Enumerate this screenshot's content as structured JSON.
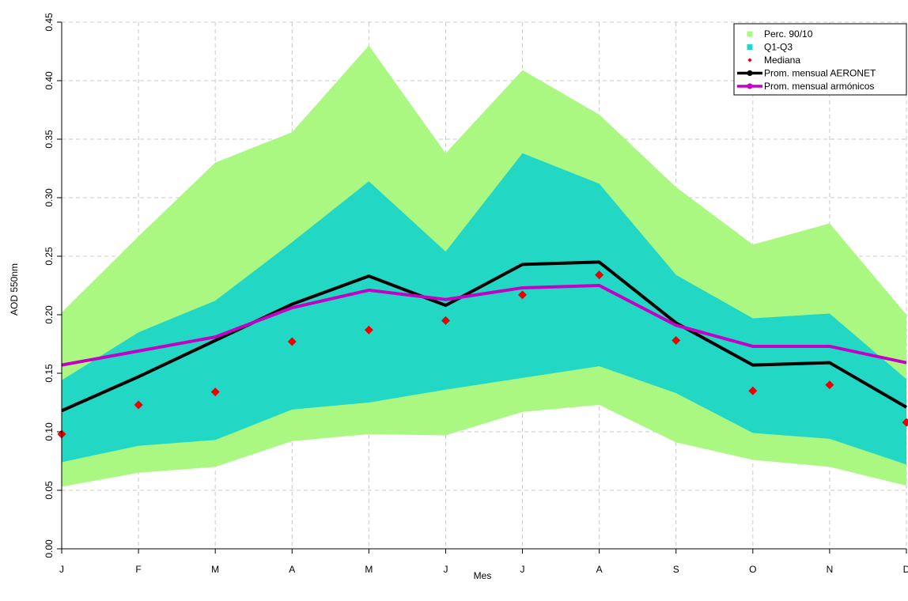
{
  "chart_data": {
    "type": "area",
    "title": "",
    "xlabel": "Mes",
    "ylabel": "AOD 550nm",
    "categories": [
      "J",
      "F",
      "M",
      "A",
      "M",
      "J",
      "J",
      "A",
      "S",
      "O",
      "N",
      "D"
    ],
    "ylim": [
      0,
      0.45
    ],
    "yticks": [
      "0.00",
      "0.05",
      "0.10",
      "0.15",
      "0.20",
      "0.25",
      "0.30",
      "0.35",
      "0.40",
      "0.45"
    ],
    "grid": true,
    "legend_position": "top-right",
    "bands": [
      {
        "name": "Perc. 90/10",
        "color": "#aaf882",
        "upper": [
          0.202,
          0.267,
          0.33,
          0.356,
          0.43,
          0.338,
          0.409,
          0.371,
          0.309,
          0.26,
          0.278,
          0.2
        ],
        "lower": [
          0.053,
          0.065,
          0.07,
          0.092,
          0.098,
          0.097,
          0.117,
          0.123,
          0.091,
          0.076,
          0.07,
          0.054
        ]
      },
      {
        "name": "Q1-Q3",
        "color": "#22d8c4",
        "upper": [
          0.144,
          0.185,
          0.212,
          0.262,
          0.314,
          0.254,
          0.338,
          0.312,
          0.234,
          0.197,
          0.201,
          0.145
        ],
        "lower": [
          0.074,
          0.088,
          0.093,
          0.119,
          0.125,
          0.136,
          0.146,
          0.156,
          0.133,
          0.099,
          0.094,
          0.072
        ]
      }
    ],
    "series": [
      {
        "name": "Mediana",
        "kind": "points",
        "color": "#ee0000",
        "values": [
          0.098,
          0.123,
          0.134,
          0.177,
          0.187,
          0.195,
          0.217,
          0.234,
          0.178,
          0.135,
          0.14,
          0.108
        ]
      },
      {
        "name": "Prom. mensual AERONET",
        "kind": "line",
        "color": "#000000",
        "values": [
          0.118,
          0.147,
          0.178,
          0.209,
          0.233,
          0.208,
          0.243,
          0.245,
          0.193,
          0.157,
          0.159,
          0.121
        ]
      },
      {
        "name": "Prom. mensual armónicos",
        "kind": "line",
        "color": "#c400c4",
        "values": [
          0.157,
          0.169,
          0.181,
          0.206,
          0.221,
          0.213,
          0.223,
          0.225,
          0.191,
          0.173,
          0.173,
          0.159
        ]
      }
    ],
    "legend": [
      {
        "label": "Perc. 90/10",
        "symbol": "square",
        "color": "#aaf882"
      },
      {
        "label": "Q1-Q3",
        "symbol": "square",
        "color": "#22d8c4"
      },
      {
        "label": "Mediana",
        "symbol": "diamond",
        "color": "#ee0000"
      },
      {
        "label": "Prom. mensual AERONET",
        "symbol": "line-point",
        "color": "#000000"
      },
      {
        "label": "Prom. mensual armónicos",
        "symbol": "line-point",
        "color": "#c400c4"
      }
    ]
  }
}
